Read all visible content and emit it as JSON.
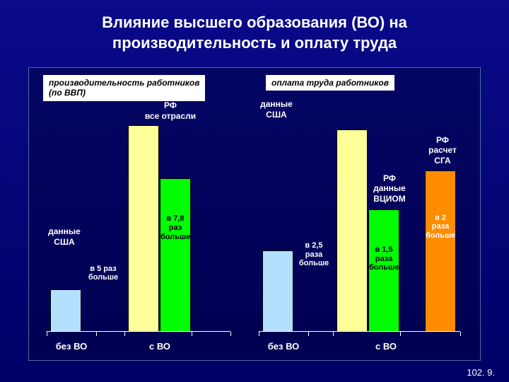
{
  "title": "Влияние высшего образования (ВО) на производительность и оплату труда",
  "left_header": "производительность работников\n(по ВВП)",
  "right_header": "оплата труда работников",
  "footer": "102. 9.",
  "chart": {
    "type": "bar",
    "background_color": "#000080",
    "frame_border_color": "#4a6fa5",
    "text_color": "#ffffff",
    "label_color": "#000000",
    "title_fontsize": 22,
    "label_fontsize": 12,
    "groups": [
      {
        "x_label": "без ВО",
        "bars": [
          {
            "height_frac": 0.2,
            "color": "#b3e0ff",
            "category_label": "данные\nСША",
            "value_text": "в 5 раз\nбольше",
            "label_pos": "above-right"
          }
        ]
      },
      {
        "x_label": "с ВО",
        "bars": [
          {
            "height_frac": 1.0,
            "color": "#ffff99",
            "category_label": null,
            "value_text": null
          },
          {
            "height_frac": 0.74,
            "color": "#00ff00",
            "category_label": "РФ\nвсе отрасли",
            "value_text": "в 7,8 раз\nбольше",
            "label_pos": "inside"
          }
        ]
      },
      {
        "x_label": "без ВО",
        "bars": [
          {
            "height_frac": 0.39,
            "color": "#b3e0ff",
            "category_label": "данные\nСША",
            "value_text": "в 2,5\nраза\nбольше",
            "label_pos": "above-right"
          }
        ]
      },
      {
        "x_label": "с ВО",
        "bars": [
          {
            "height_frac": 0.98,
            "color": "#ffff99",
            "category_label": null,
            "value_text": null
          },
          {
            "height_frac": 0.59,
            "color": "#00ff00",
            "category_label": "РФ\nданные\nВЦИОМ",
            "value_text": "в 1,5\nраза\nбольше",
            "label_pos": "inside"
          },
          {
            "height_frac": 0.78,
            "color": "#ff8c00",
            "category_label": "РФ\nрасчет\nСГА",
            "value_text": "в 2\nраза\nбольше",
            "label_pos": "inside"
          }
        ]
      }
    ]
  }
}
